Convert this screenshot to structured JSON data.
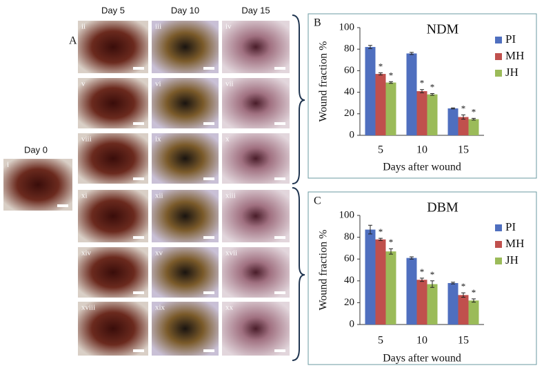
{
  "figure": {
    "panel_label": "A",
    "day0_header": "Day 0",
    "day0_photo": "i",
    "day_headers": [
      "Day 5",
      "Day 10",
      "Day 15"
    ],
    "photos": [
      [
        "ii",
        "iii",
        "iv"
      ],
      [
        "v",
        "vi",
        "vii"
      ],
      [
        "viii",
        "ix",
        "x"
      ],
      [
        "xi",
        "xii",
        "xiii"
      ],
      [
        "xiv",
        "xv",
        "xvii"
      ],
      [
        "xviii",
        "xix",
        "xx"
      ]
    ]
  },
  "chart_data": [
    {
      "type": "bar",
      "panel_label": "B",
      "title": "NDM",
      "x_label": "Days after wound",
      "y_label": "Wound  fraction %",
      "categories": [
        "5",
        "10",
        "15"
      ],
      "ylim": [
        0,
        100
      ],
      "yticks": [
        0,
        20,
        40,
        60,
        80,
        100
      ],
      "series": [
        {
          "name": "PI",
          "color": "#4f6fbf",
          "values": [
            82,
            76,
            25
          ],
          "errors": [
            1.5,
            1,
            0.5
          ]
        },
        {
          "name": "MH",
          "color": "#c0504d",
          "values": [
            57,
            41,
            17
          ],
          "errors": [
            1,
            1.5,
            2
          ],
          "annotations": [
            "*",
            "*",
            "*"
          ]
        },
        {
          "name": "JH",
          "color": "#9bbb59",
          "values": [
            49,
            38,
            15
          ],
          "errors": [
            0.8,
            0.8,
            0.8
          ],
          "annotations": [
            "*",
            "*",
            "*"
          ]
        }
      ]
    },
    {
      "type": "bar",
      "panel_label": "C",
      "title": "DBM",
      "x_label": "Days after wound",
      "y_label": "Wound  fraction %",
      "categories": [
        "5",
        "10",
        "15"
      ],
      "ylim": [
        0,
        100
      ],
      "yticks": [
        0,
        20,
        40,
        60,
        80,
        100
      ],
      "series": [
        {
          "name": "PI",
          "color": "#4f6fbf",
          "values": [
            87,
            61,
            38
          ],
          "errors": [
            4,
            1,
            0.8
          ]
        },
        {
          "name": "MH",
          "color": "#c0504d",
          "values": [
            78,
            41,
            27
          ],
          "errors": [
            1,
            1.5,
            2
          ],
          "annotations": [
            "*",
            "*",
            "*"
          ]
        },
        {
          "name": "JH",
          "color": "#9bbb59",
          "values": [
            67,
            37,
            22
          ],
          "errors": [
            2.5,
            3,
            1.5
          ],
          "annotations": [
            "*",
            "*",
            "*"
          ]
        }
      ]
    }
  ]
}
